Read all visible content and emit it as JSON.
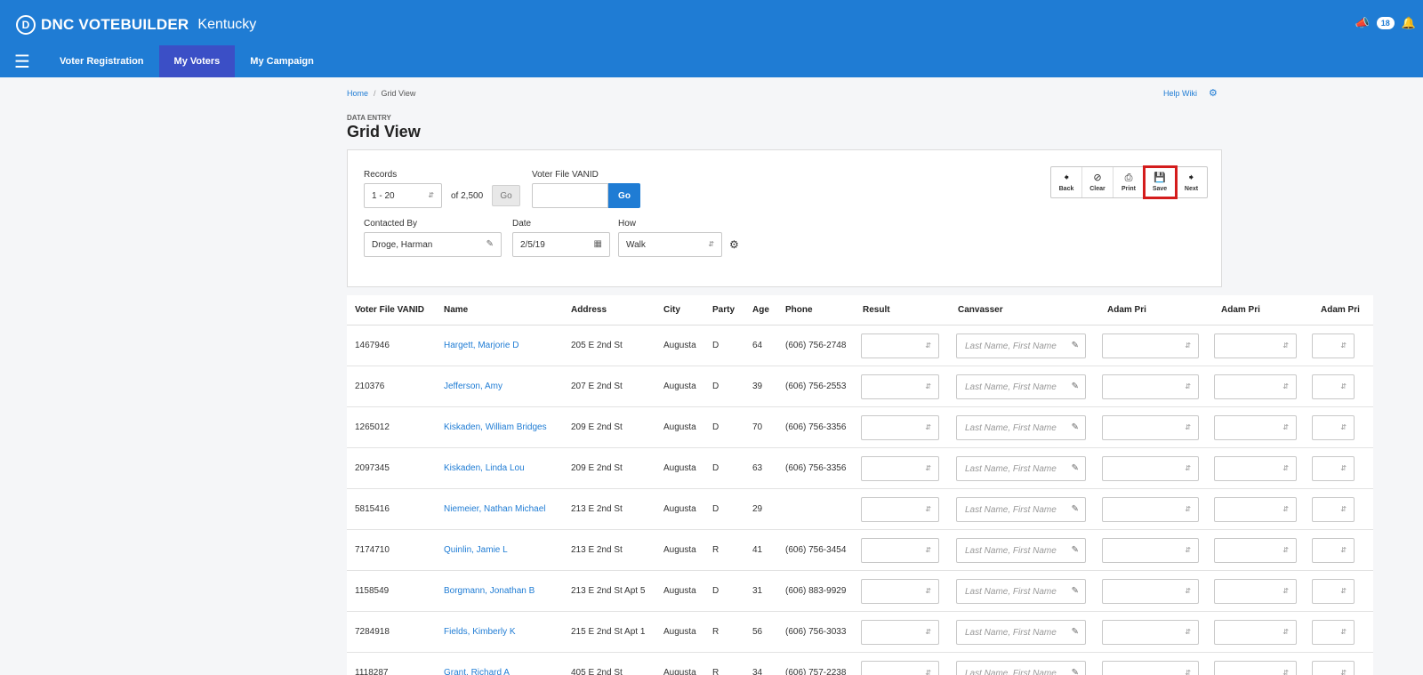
{
  "app": {
    "brand": "DNC VOTEBUILDER",
    "brand_logo": "D",
    "state": "Kentucky",
    "notification_count": "18"
  },
  "nav": {
    "tabs": [
      {
        "label": "Voter Registration"
      },
      {
        "label": "My Voters"
      },
      {
        "label": "My Campaign"
      }
    ],
    "active_tab": "My Voters"
  },
  "breadcrumb": {
    "home": "Home",
    "sep": "/",
    "current": "Grid View"
  },
  "help_wiki": "Help Wiki",
  "page": {
    "subtitle": "DATA ENTRY",
    "title": "Grid View"
  },
  "filters": {
    "records_label": "Records",
    "records_value": "1 - 20",
    "of_text": "of 2,500",
    "go_label": "Go",
    "vanid_label": "Voter File VANID",
    "vanid_value": "",
    "vanid_go": "Go",
    "contacted_by_label": "Contacted By",
    "contacted_by_value": "Droge, Harman",
    "date_label": "Date",
    "date_value": "2/5/19",
    "how_label": "How",
    "how_value": "Walk"
  },
  "toolbar": {
    "buttons": [
      {
        "label": "Back",
        "icon": "arrow-left-icon"
      },
      {
        "label": "Clear",
        "icon": "ban-icon"
      },
      {
        "label": "Print",
        "icon": "printer-icon"
      },
      {
        "label": "Save",
        "icon": "floppy-disk-icon"
      },
      {
        "label": "Next",
        "icon": "arrow-right-icon"
      }
    ],
    "highlight_color": "#d41c1c"
  },
  "table": {
    "headers": [
      "Voter File VANID",
      "Name",
      "Address",
      "City",
      "Party",
      "Age",
      "Phone",
      "Result",
      "Canvasser",
      "Adam Pri",
      "Adam Pri",
      "Adam Pri"
    ],
    "canvasser_placeholder": "Last Name, First Name",
    "rows": [
      {
        "vanid": "1467946",
        "name": "Hargett, Marjorie D",
        "address": "205 E 2nd St",
        "city": "Augusta",
        "party": "D",
        "age": "64",
        "phone": "(606) 756-2748"
      },
      {
        "vanid": "210376",
        "name": "Jefferson, Amy",
        "address": "207 E 2nd St",
        "city": "Augusta",
        "party": "D",
        "age": "39",
        "phone": "(606) 756-2553"
      },
      {
        "vanid": "1265012",
        "name": "Kiskaden, William Bridges",
        "address": "209 E 2nd St",
        "city": "Augusta",
        "party": "D",
        "age": "70",
        "phone": "(606) 756-3356"
      },
      {
        "vanid": "2097345",
        "name": "Kiskaden, Linda Lou",
        "address": "209 E 2nd St",
        "city": "Augusta",
        "party": "D",
        "age": "63",
        "phone": "(606) 756-3356"
      },
      {
        "vanid": "5815416",
        "name": "Niemeier, Nathan Michael",
        "address": "213 E 2nd St",
        "city": "Augusta",
        "party": "D",
        "age": "29",
        "phone": ""
      },
      {
        "vanid": "7174710",
        "name": "Quinlin, Jamie L",
        "address": "213 E 2nd St",
        "city": "Augusta",
        "party": "R",
        "age": "41",
        "phone": "(606) 756-3454"
      },
      {
        "vanid": "1158549",
        "name": "Borgmann, Jonathan B",
        "address": "213 E 2nd St Apt 5",
        "city": "Augusta",
        "party": "D",
        "age": "31",
        "phone": "(606) 883-9929"
      },
      {
        "vanid": "7284918",
        "name": "Fields, Kimberly K",
        "address": "215 E 2nd St Apt 1",
        "city": "Augusta",
        "party": "R",
        "age": "56",
        "phone": "(606) 756-3033"
      },
      {
        "vanid": "1118287",
        "name": "Grant, Richard A",
        "address": "405 E 2nd St",
        "city": "Augusta",
        "party": "R",
        "age": "34",
        "phone": "(606) 757-2238"
      }
    ]
  },
  "colors": {
    "header_blue": "#1f7cd4",
    "active_tab": "#3b4fc6",
    "link": "#1f7cd4"
  }
}
